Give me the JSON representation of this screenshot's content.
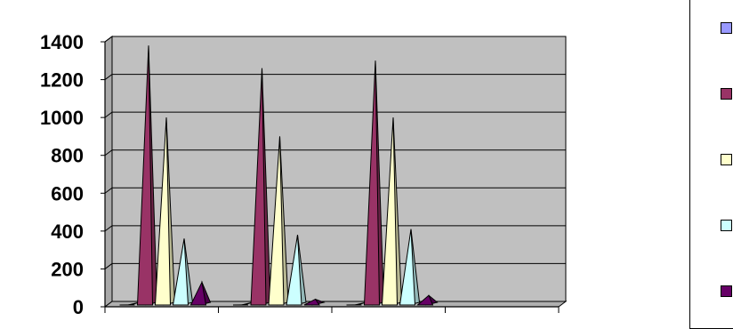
{
  "chart_data": {
    "type": "bar",
    "style": "3d-pyramid",
    "categories": [
      "",
      "",
      "",
      ""
    ],
    "series": [
      {
        "color": "#9999FF",
        "values": [
          10,
          10,
          10,
          0
        ]
      },
      {
        "color": "#993366",
        "values": [
          1380,
          1260,
          1300,
          0
        ]
      },
      {
        "color": "#FFFFCC",
        "values": [
          1000,
          900,
          1000,
          0
        ]
      },
      {
        "color": "#CCFFFF",
        "values": [
          360,
          380,
          410,
          0
        ]
      },
      {
        "color": "#660066",
        "values": [
          130,
          40,
          60,
          0
        ]
      }
    ],
    "y_ticks": [
      "0",
      "200",
      "400",
      "600",
      "800",
      "1000",
      "1200",
      "1400"
    ],
    "ylim": [
      0,
      1400
    ],
    "grid": true,
    "plot_background": "#C0C0C0",
    "legend_position": "right"
  }
}
